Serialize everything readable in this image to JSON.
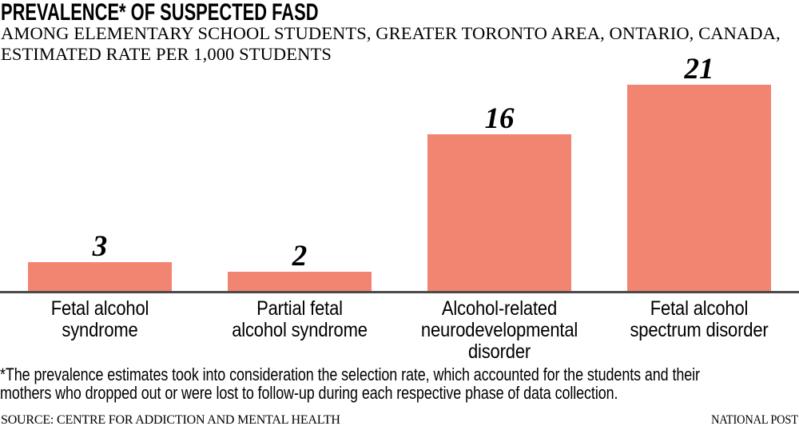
{
  "title": "PREVALENCE* OF SUSPECTED FASD",
  "subtitle": "AMONG ELEMENTARY SCHOOL STUDENTS, GREATER TORONTO AREA, ONTARIO, CANADA,\nESTIMATED RATE PER 1,000 STUDENTS",
  "chart_data": {
    "type": "bar",
    "categories": [
      "Fetal alcohol\nsyndrome",
      "Partial fetal\nalcohol syndrome",
      "Alcohol-related\nneurodevelopmental\ndisorder",
      "Fetal alcohol\nspectrum disorder"
    ],
    "values": [
      3,
      2,
      16,
      21
    ],
    "title": "PREVALENCE* OF SUSPECTED FASD",
    "xlabel": "",
    "ylabel": "",
    "ylim": [
      0,
      21
    ],
    "grid": false,
    "legend": false,
    "value_labels_shown": true,
    "bar_color": "#F28472"
  },
  "footnote": "*The prevalence estimates took into consideration the selection rate, which accounted for the students and their\nmothers who dropped out or were lost to follow-up during each respective phase of data collection.",
  "source": "SOURCE: CENTRE FOR ADDICTION AND MENTAL HEALTH",
  "credit": "NATIONAL POST",
  "colors": {
    "bar": "#F28472",
    "axis": "#4A4A4A",
    "text": "#000000",
    "background": "#FFFFFF"
  }
}
